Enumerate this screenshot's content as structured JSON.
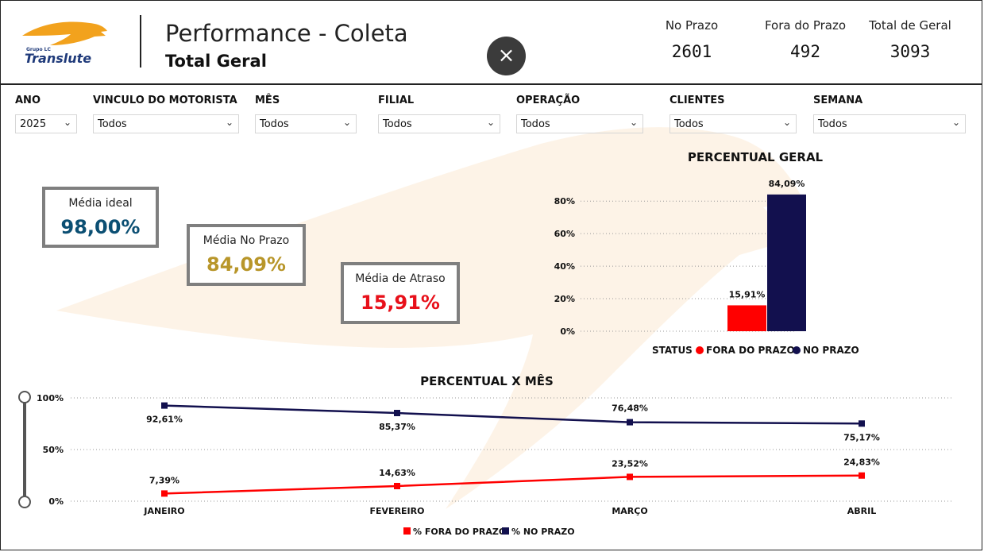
{
  "header": {
    "logo_top": "Grupo LC",
    "logo_text": "Translute",
    "title": "Performance - Coleta",
    "subtitle": "Total Geral",
    "close_icon": "×",
    "kpis": [
      {
        "label": "No Prazo",
        "value": "2601"
      },
      {
        "label": "Fora do Prazo",
        "value": "492"
      },
      {
        "label": "Total de Geral",
        "value": "3093"
      }
    ]
  },
  "filters": [
    {
      "label": "ANO",
      "value": "2025"
    },
    {
      "label": "VINCULO DO MOTORISTA",
      "value": "Todos"
    },
    {
      "label": "MÊS",
      "value": "Todos"
    },
    {
      "label": "FILIAL",
      "value": "Todos"
    },
    {
      "label": "OPERAÇÃO",
      "value": "Todos"
    },
    {
      "label": "CLIENTES",
      "value": "Todos"
    },
    {
      "label": "SEMANA",
      "value": "Todos"
    }
  ],
  "cards": [
    {
      "label": "Média ideal",
      "value": "98,00%",
      "color": "#0b4f73"
    },
    {
      "label": "Média No Prazo",
      "value": "84,09%",
      "color": "#b8962a"
    },
    {
      "label": "Média de Atraso",
      "value": "15,91%",
      "color": "#e8101a"
    }
  ],
  "colors": {
    "fora": "#ff0000",
    "no_prazo": "#12104e"
  },
  "chart_data": [
    {
      "type": "bar",
      "title": "PERCENTUAL GERAL",
      "categories": [
        "FORA DO PRAZO",
        "NO PRAZO"
      ],
      "values": [
        15.91,
        84.09
      ],
      "data_labels": [
        "15,91%",
        "84,09%"
      ],
      "ylim": [
        0,
        85
      ],
      "yticks": [
        0,
        20,
        40,
        60,
        80
      ],
      "ytick_labels": [
        "0%",
        "20%",
        "40%",
        "60%",
        "80%"
      ],
      "grid": true,
      "legend_title": "STATUS",
      "legend": [
        "FORA DO PRAZO",
        "NO PRAZO"
      ],
      "legend_position": "bottom"
    },
    {
      "type": "line",
      "title": "PERCENTUAL X MÊS",
      "categories": [
        "JANEIRO",
        "FEVEREIRO",
        "MARÇO",
        "ABRIL"
      ],
      "series": [
        {
          "name": "% FORA DO PRAZO",
          "values": [
            7.39,
            14.63,
            23.52,
            24.83
          ],
          "labels": [
            "7,39%",
            "14,63%",
            "23,52%",
            "24,83%"
          ]
        },
        {
          "name": "% NO PRAZO",
          "values": [
            92.61,
            85.37,
            76.48,
            75.17
          ],
          "labels": [
            "92,61%",
            "85,37%",
            "76,48%",
            "75,17%"
          ]
        }
      ],
      "ylim": [
        0,
        100
      ],
      "yticks": [
        0,
        50,
        100
      ],
      "ytick_labels": [
        "0%",
        "50%",
        "100%"
      ],
      "grid": true,
      "legend_position": "bottom"
    }
  ]
}
